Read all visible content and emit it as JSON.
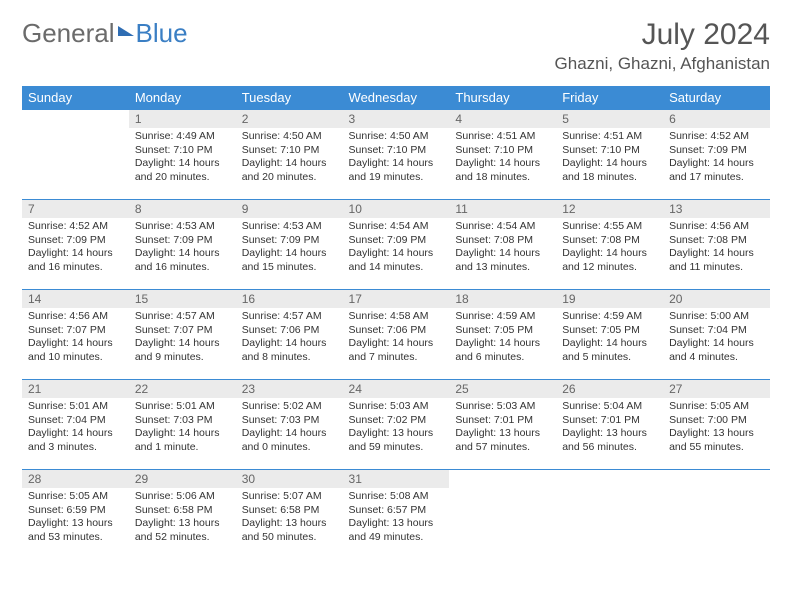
{
  "brand": {
    "part1": "General",
    "part2": "Blue"
  },
  "title": "July 2024",
  "location": "Ghazni, Ghazni, Afghanistan",
  "colors": {
    "header_bg": "#3b8bd4",
    "header_text": "#ffffff",
    "daynum_bg": "#ebebeb",
    "border": "#3b8bd4",
    "logo_gray": "#6b6b6b",
    "logo_blue": "#3b7fc4"
  },
  "weekdays": [
    "Sunday",
    "Monday",
    "Tuesday",
    "Wednesday",
    "Thursday",
    "Friday",
    "Saturday"
  ],
  "labels": {
    "sunrise": "Sunrise:",
    "sunset": "Sunset:",
    "daylight": "Daylight:"
  },
  "start_offset": 1,
  "days": [
    {
      "n": 1,
      "sunrise": "4:49 AM",
      "sunset": "7:10 PM",
      "daylight": "14 hours and 20 minutes."
    },
    {
      "n": 2,
      "sunrise": "4:50 AM",
      "sunset": "7:10 PM",
      "daylight": "14 hours and 20 minutes."
    },
    {
      "n": 3,
      "sunrise": "4:50 AM",
      "sunset": "7:10 PM",
      "daylight": "14 hours and 19 minutes."
    },
    {
      "n": 4,
      "sunrise": "4:51 AM",
      "sunset": "7:10 PM",
      "daylight": "14 hours and 18 minutes."
    },
    {
      "n": 5,
      "sunrise": "4:51 AM",
      "sunset": "7:10 PM",
      "daylight": "14 hours and 18 minutes."
    },
    {
      "n": 6,
      "sunrise": "4:52 AM",
      "sunset": "7:09 PM",
      "daylight": "14 hours and 17 minutes."
    },
    {
      "n": 7,
      "sunrise": "4:52 AM",
      "sunset": "7:09 PM",
      "daylight": "14 hours and 16 minutes."
    },
    {
      "n": 8,
      "sunrise": "4:53 AM",
      "sunset": "7:09 PM",
      "daylight": "14 hours and 16 minutes."
    },
    {
      "n": 9,
      "sunrise": "4:53 AM",
      "sunset": "7:09 PM",
      "daylight": "14 hours and 15 minutes."
    },
    {
      "n": 10,
      "sunrise": "4:54 AM",
      "sunset": "7:09 PM",
      "daylight": "14 hours and 14 minutes."
    },
    {
      "n": 11,
      "sunrise": "4:54 AM",
      "sunset": "7:08 PM",
      "daylight": "14 hours and 13 minutes."
    },
    {
      "n": 12,
      "sunrise": "4:55 AM",
      "sunset": "7:08 PM",
      "daylight": "14 hours and 12 minutes."
    },
    {
      "n": 13,
      "sunrise": "4:56 AM",
      "sunset": "7:08 PM",
      "daylight": "14 hours and 11 minutes."
    },
    {
      "n": 14,
      "sunrise": "4:56 AM",
      "sunset": "7:07 PM",
      "daylight": "14 hours and 10 minutes."
    },
    {
      "n": 15,
      "sunrise": "4:57 AM",
      "sunset": "7:07 PM",
      "daylight": "14 hours and 9 minutes."
    },
    {
      "n": 16,
      "sunrise": "4:57 AM",
      "sunset": "7:06 PM",
      "daylight": "14 hours and 8 minutes."
    },
    {
      "n": 17,
      "sunrise": "4:58 AM",
      "sunset": "7:06 PM",
      "daylight": "14 hours and 7 minutes."
    },
    {
      "n": 18,
      "sunrise": "4:59 AM",
      "sunset": "7:05 PM",
      "daylight": "14 hours and 6 minutes."
    },
    {
      "n": 19,
      "sunrise": "4:59 AM",
      "sunset": "7:05 PM",
      "daylight": "14 hours and 5 minutes."
    },
    {
      "n": 20,
      "sunrise": "5:00 AM",
      "sunset": "7:04 PM",
      "daylight": "14 hours and 4 minutes."
    },
    {
      "n": 21,
      "sunrise": "5:01 AM",
      "sunset": "7:04 PM",
      "daylight": "14 hours and 3 minutes."
    },
    {
      "n": 22,
      "sunrise": "5:01 AM",
      "sunset": "7:03 PM",
      "daylight": "14 hours and 1 minute."
    },
    {
      "n": 23,
      "sunrise": "5:02 AM",
      "sunset": "7:03 PM",
      "daylight": "14 hours and 0 minutes."
    },
    {
      "n": 24,
      "sunrise": "5:03 AM",
      "sunset": "7:02 PM",
      "daylight": "13 hours and 59 minutes."
    },
    {
      "n": 25,
      "sunrise": "5:03 AM",
      "sunset": "7:01 PM",
      "daylight": "13 hours and 57 minutes."
    },
    {
      "n": 26,
      "sunrise": "5:04 AM",
      "sunset": "7:01 PM",
      "daylight": "13 hours and 56 minutes."
    },
    {
      "n": 27,
      "sunrise": "5:05 AM",
      "sunset": "7:00 PM",
      "daylight": "13 hours and 55 minutes."
    },
    {
      "n": 28,
      "sunrise": "5:05 AM",
      "sunset": "6:59 PM",
      "daylight": "13 hours and 53 minutes."
    },
    {
      "n": 29,
      "sunrise": "5:06 AM",
      "sunset": "6:58 PM",
      "daylight": "13 hours and 52 minutes."
    },
    {
      "n": 30,
      "sunrise": "5:07 AM",
      "sunset": "6:58 PM",
      "daylight": "13 hours and 50 minutes."
    },
    {
      "n": 31,
      "sunrise": "5:08 AM",
      "sunset": "6:57 PM",
      "daylight": "13 hours and 49 minutes."
    }
  ]
}
